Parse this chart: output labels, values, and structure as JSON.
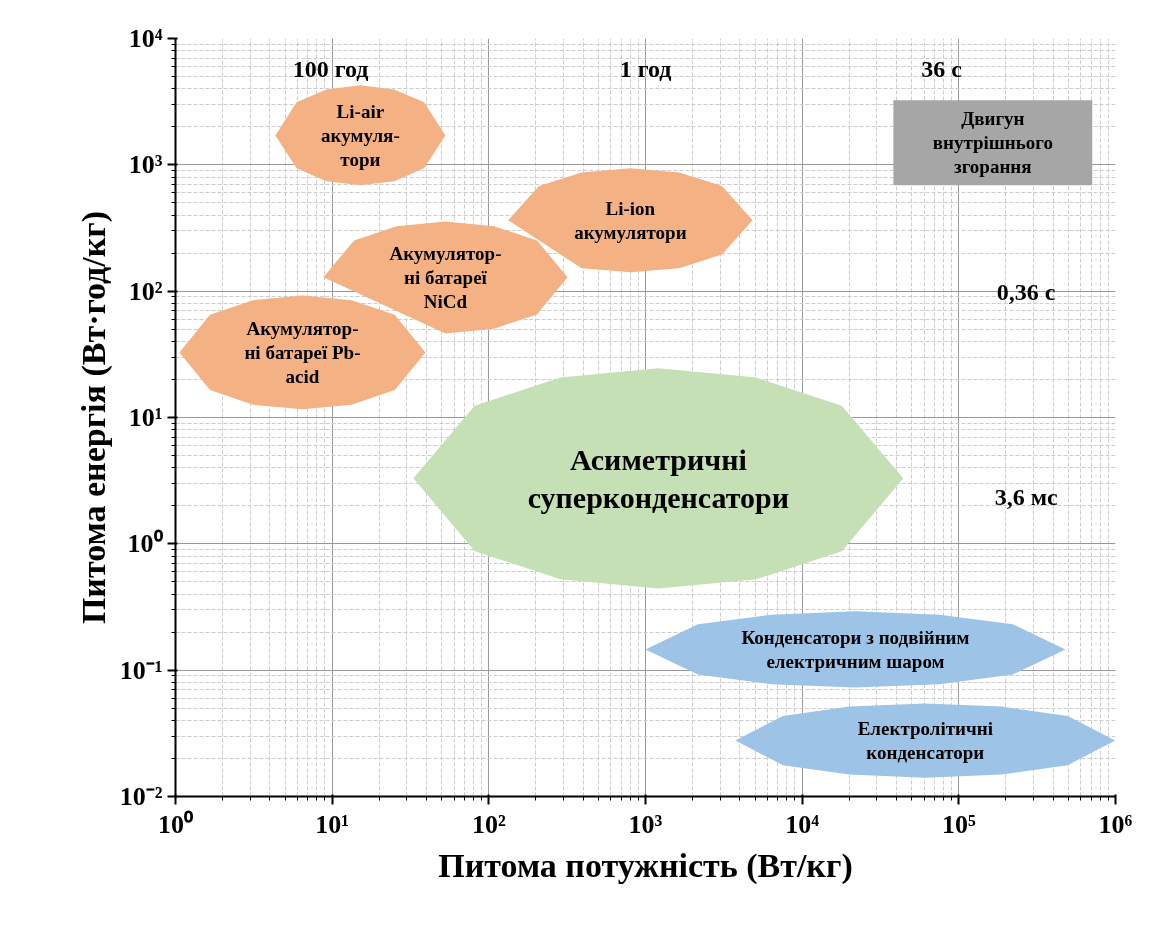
{
  "chart_data": {
    "type": "area",
    "xlabel": "Питома потужність (Вт/кг)",
    "ylabel": "Питома енергія (Вт·год/кг)",
    "log": "xy",
    "grid": true,
    "xlim": [
      1,
      1000000
    ],
    "ylim": [
      0.01,
      10000
    ],
    "xticks": [
      {
        "value": 1,
        "label": "10⁰"
      },
      {
        "value": 10,
        "label": "10¹"
      },
      {
        "value": 100,
        "label": "10²"
      },
      {
        "value": 1000,
        "label": "10³"
      },
      {
        "value": 10000,
        "label": "10⁴"
      },
      {
        "value": 100000,
        "label": "10⁵"
      },
      {
        "value": 1000000,
        "label": "10⁶"
      }
    ],
    "yticks": [
      {
        "value": 0.01,
        "label": "10⁻²"
      },
      {
        "value": 0.1,
        "label": "10⁻¹"
      },
      {
        "value": 1,
        "label": "10⁰"
      },
      {
        "value": 10,
        "label": "10¹"
      },
      {
        "value": 100,
        "label": "10²"
      },
      {
        "value": 1000,
        "label": "10³"
      },
      {
        "value": 10000,
        "label": "10⁴"
      }
    ],
    "series": [
      {
        "name": "Li-air\nакумуля-\nтори",
        "color": "#f4b183",
        "x": [
          4.34,
          5.93,
          9.18,
          15.1,
          24.9,
          38.6,
          52.8,
          38.6,
          24.9,
          15.1,
          9.18,
          5.93
        ],
        "values": [
          1710,
          3130,
          3950,
          4270,
          3950,
          3130,
          1710,
          938,
          743,
          689,
          743,
          938
        ]
      },
      {
        "name": "Li-ion\nакумулятори",
        "color": "#f4b183",
        "x": [
          133,
          209,
          391,
          802,
          1640,
          3080,
          4820,
          3080,
          1640,
          802,
          391
        ],
        "values": [
          364,
          681,
          869,
          940,
          869,
          681,
          364,
          195,
          152,
          141,
          152
        ]
      },
      {
        "name": "Акумулятор-\nні батареї\nNiCd",
        "color": "#f4b183",
        "x": [
          8.79,
          13.8,
          25.8,
          52.8,
          108,
          203,
          318,
          203,
          108,
          52.8
        ],
        "values": [
          129,
          252,
          327,
          356,
          327,
          252,
          129,
          65.5,
          50.5,
          46.3
        ]
      },
      {
        "name": "Акумулятор-\nні батареї Pb-\nacid",
        "color": "#f4b183",
        "x": [
          1.06,
          1.66,
          3.13,
          6.46,
          13.3,
          25.1,
          39.4,
          25.1,
          13.3,
          6.46,
          3.13,
          1.66
        ],
        "values": [
          32.7,
          65.0,
          84.9,
          92.5,
          84.9,
          65.0,
          32.7,
          16.5,
          12.6,
          11.6,
          12.6,
          16.5
        ]
      },
      {
        "name": "Асиметричні\nсуперконденсатори",
        "color": "#c5e0b4",
        "x": [
          33.0,
          81.3,
          286,
          1210,
          5090,
          17900,
          44200,
          17900,
          5090,
          1210,
          286,
          81.3
        ],
        "values": [
          3.3,
          12.4,
          20.7,
          24.5,
          20.7,
          12.4,
          3.3,
          0.875,
          0.524,
          0.444,
          0.524,
          0.875
        ]
      },
      {
        "name": "Конденсатори з подвійним\nелектричним шаром",
        "color": "#9dc3e6",
        "x": [
          1000,
          2160,
          6370,
          21900,
          75200,
          221000,
          479000,
          221000,
          75200,
          21900,
          6370,
          2160
        ],
        "values": [
          0.146,
          0.231,
          0.275,
          0.292,
          0.275,
          0.231,
          0.146,
          0.0923,
          0.0773,
          0.0729,
          0.0773,
          0.0923
        ]
      },
      {
        "name": "Електролітичні\nконденсатори",
        "color": "#9dc3e6",
        "x": [
          3750,
          7530,
          20000,
          61100,
          187000,
          495000,
          995000,
          495000,
          187000,
          61100,
          20000,
          7530
        ],
        "values": [
          0.0277,
          0.0434,
          0.0515,
          0.0545,
          0.0515,
          0.0434,
          0.0277,
          0.0177,
          0.0149,
          0.0141,
          0.0149,
          0.0177
        ]
      },
      {
        "name": "Двигун\nвнутрішнього\nзгорання",
        "color": "#a6a6a6",
        "x": [
          38200,
          711000,
          711000,
          38200
        ],
        "values": [
          3240,
          3240,
          689,
          689
        ]
      }
    ],
    "annotations": [
      "100 год",
      "1 год",
      "36 с",
      "0,36 с",
      "3,6 мс"
    ]
  }
}
